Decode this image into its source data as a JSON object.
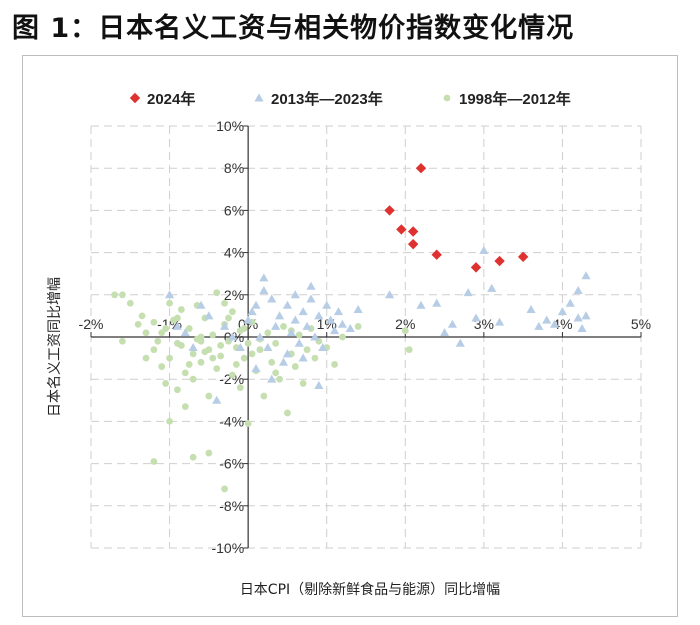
{
  "figure": {
    "title": "图 1：日本名义工资与相关物价指数变化情况"
  },
  "chart_data": {
    "type": "scatter",
    "xlabel": "日本CPI（剔除新鲜食品与能源）同比增幅",
    "ylabel": "日本名义工资同比增幅",
    "xlim": [
      -2,
      5
    ],
    "ylim": [
      -10,
      10
    ],
    "x_ticks": [
      "-2%",
      "-1%",
      "0%",
      "1%",
      "2%",
      "3%",
      "4%",
      "5%"
    ],
    "y_ticks": [
      "10%",
      "8%",
      "6%",
      "4%",
      "2%",
      "0%",
      "-2%",
      "-4%",
      "-6%",
      "-8%",
      "-10%"
    ],
    "grid": true,
    "legend_position": "top",
    "series": [
      {
        "name": "2024年",
        "marker": "diamond",
        "color": "#e03131",
        "points": [
          [
            1.8,
            6.0
          ],
          [
            1.95,
            5.1
          ],
          [
            2.1,
            5.0
          ],
          [
            2.1,
            4.4
          ],
          [
            2.2,
            8.0
          ],
          [
            2.4,
            3.9
          ],
          [
            2.9,
            3.3
          ],
          [
            3.2,
            3.6
          ],
          [
            3.5,
            3.8
          ]
        ]
      },
      {
        "name": "2013年—2023年",
        "marker": "triangle",
        "color": "#b7cde6",
        "points": [
          [
            -1.0,
            2.0
          ],
          [
            -0.9,
            0.5
          ],
          [
            -0.8,
            0.2
          ],
          [
            -0.7,
            -0.5
          ],
          [
            -0.6,
            1.5
          ],
          [
            -0.5,
            1.0
          ],
          [
            -0.4,
            -3.0
          ],
          [
            -0.3,
            0.5
          ],
          [
            -0.2,
            0.0
          ],
          [
            -0.1,
            -0.5
          ],
          [
            0.0,
            0.8
          ],
          [
            0.05,
            1.2
          ],
          [
            0.1,
            1.5
          ],
          [
            0.15,
            0.0
          ],
          [
            0.2,
            2.8
          ],
          [
            0.25,
            -0.5
          ],
          [
            0.3,
            1.8
          ],
          [
            0.35,
            0.5
          ],
          [
            0.4,
            1.0
          ],
          [
            0.45,
            -1.2
          ],
          [
            0.5,
            1.5
          ],
          [
            0.55,
            0.2
          ],
          [
            0.6,
            0.8
          ],
          [
            0.65,
            -0.3
          ],
          [
            0.7,
            1.2
          ],
          [
            0.75,
            0.5
          ],
          [
            0.8,
            1.8
          ],
          [
            0.85,
            0.0
          ],
          [
            0.9,
            1.0
          ],
          [
            0.95,
            -0.5
          ],
          [
            1.0,
            1.5
          ],
          [
            1.05,
            0.8
          ],
          [
            1.1,
            0.3
          ],
          [
            1.15,
            1.2
          ],
          [
            1.2,
            0.6
          ],
          [
            1.3,
            0.4
          ],
          [
            1.4,
            1.3
          ],
          [
            0.1,
            -1.5
          ],
          [
            0.3,
            -2.0
          ],
          [
            0.5,
            -0.8
          ],
          [
            0.7,
            -1.0
          ],
          [
            0.9,
            -2.3
          ],
          [
            0.2,
            2.2
          ],
          [
            0.6,
            2.0
          ],
          [
            0.8,
            2.4
          ],
          [
            1.8,
            2.0
          ],
          [
            2.2,
            1.5
          ],
          [
            2.4,
            1.6
          ],
          [
            2.6,
            0.6
          ],
          [
            2.8,
            2.1
          ],
          [
            2.9,
            0.9
          ],
          [
            3.0,
            4.1
          ],
          [
            3.1,
            2.3
          ],
          [
            3.2,
            0.7
          ],
          [
            3.6,
            1.3
          ],
          [
            3.7,
            0.5
          ],
          [
            3.9,
            0.6
          ],
          [
            4.0,
            1.2
          ],
          [
            4.1,
            1.6
          ],
          [
            4.2,
            0.9
          ],
          [
            4.25,
            0.4
          ],
          [
            4.3,
            2.9
          ],
          [
            4.3,
            1.0
          ],
          [
            2.5,
            0.2
          ],
          [
            2.7,
            -0.3
          ],
          [
            3.8,
            0.8
          ],
          [
            4.2,
            2.2
          ]
        ]
      },
      {
        "name": "1998年—2012年",
        "marker": "circle",
        "color": "#c6dfb1",
        "points": [
          [
            -1.7,
            2.0
          ],
          [
            -1.6,
            2.0
          ],
          [
            -1.5,
            1.6
          ],
          [
            -1.4,
            0.6
          ],
          [
            -1.3,
            0.2
          ],
          [
            -1.3,
            -1.0
          ],
          [
            -1.2,
            -0.6
          ],
          [
            -1.1,
            0.2
          ],
          [
            -1.1,
            -1.4
          ],
          [
            -1.05,
            -2.2
          ],
          [
            -1.0,
            -1.0
          ],
          [
            -1.0,
            -4.0
          ],
          [
            -0.95,
            0.8
          ],
          [
            -0.9,
            -0.3
          ],
          [
            -0.9,
            -2.5
          ],
          [
            -0.85,
            1.3
          ],
          [
            -0.8,
            -1.7
          ],
          [
            -0.8,
            -3.3
          ],
          [
            -0.75,
            0.4
          ],
          [
            -0.7,
            -0.8
          ],
          [
            -0.7,
            -2.0
          ],
          [
            -0.65,
            1.5
          ],
          [
            -0.6,
            -0.2
          ],
          [
            -0.6,
            -1.2
          ],
          [
            -0.55,
            0.9
          ],
          [
            -0.5,
            -0.6
          ],
          [
            -0.5,
            -2.8
          ],
          [
            -0.5,
            -5.5
          ],
          [
            -0.45,
            0.1
          ],
          [
            -0.4,
            -1.5
          ],
          [
            -0.4,
            2.1
          ],
          [
            -0.35,
            -0.9
          ],
          [
            -0.3,
            0.6
          ],
          [
            -0.3,
            -7.2
          ],
          [
            -0.25,
            -0.2
          ],
          [
            -0.2,
            -1.8
          ],
          [
            -0.2,
            1.2
          ],
          [
            -0.15,
            -0.5
          ],
          [
            -0.1,
            0.3
          ],
          [
            -0.1,
            -2.4
          ],
          [
            -0.05,
            -1.0
          ],
          [
            0.0,
            -4.1
          ],
          [
            0.0,
            -0.3
          ],
          [
            0.05,
            0.7
          ],
          [
            0.1,
            -1.6
          ],
          [
            0.15,
            -0.6
          ],
          [
            0.2,
            -2.8
          ],
          [
            0.25,
            0.2
          ],
          [
            0.3,
            -1.2
          ],
          [
            0.35,
            -0.3
          ],
          [
            0.4,
            -2.0
          ],
          [
            0.45,
            0.5
          ],
          [
            0.5,
            -3.6
          ],
          [
            0.55,
            -0.8
          ],
          [
            0.6,
            -1.4
          ],
          [
            0.65,
            0.1
          ],
          [
            0.7,
            -2.2
          ],
          [
            0.75,
            -0.6
          ],
          [
            0.8,
            0.4
          ],
          [
            0.85,
            -1.0
          ],
          [
            0.9,
            -0.2
          ],
          [
            1.0,
            -0.5
          ],
          [
            1.1,
            -1.3
          ],
          [
            1.2,
            0.0
          ],
          [
            1.4,
            0.5
          ],
          [
            2.05,
            -0.6
          ],
          [
            2.0,
            0.3
          ],
          [
            -1.35,
            1.0
          ],
          [
            -1.2,
            0.7
          ],
          [
            -1.15,
            -0.2
          ],
          [
            -1.0,
            1.6
          ],
          [
            -0.85,
            -0.4
          ],
          [
            -0.75,
            -1.3
          ],
          [
            -0.65,
            -0.1
          ],
          [
            -0.55,
            -0.7
          ],
          [
            -0.45,
            -1.0
          ],
          [
            -0.35,
            -0.4
          ],
          [
            -0.25,
            0.9
          ],
          [
            -0.15,
            -1.3
          ],
          [
            -0.05,
            0.4
          ],
          [
            0.05,
            -0.8
          ],
          [
            0.15,
            -0.1
          ],
          [
            0.35,
            -1.7
          ],
          [
            0.55,
            0.3
          ],
          [
            -1.2,
            -5.9
          ],
          [
            -0.7,
            -5.7
          ],
          [
            -0.6,
            0.0
          ],
          [
            -0.9,
            0.9
          ],
          [
            -1.05,
            0.4
          ],
          [
            -0.3,
            1.6
          ],
          [
            -1.6,
            -0.2
          ]
        ]
      }
    ]
  }
}
